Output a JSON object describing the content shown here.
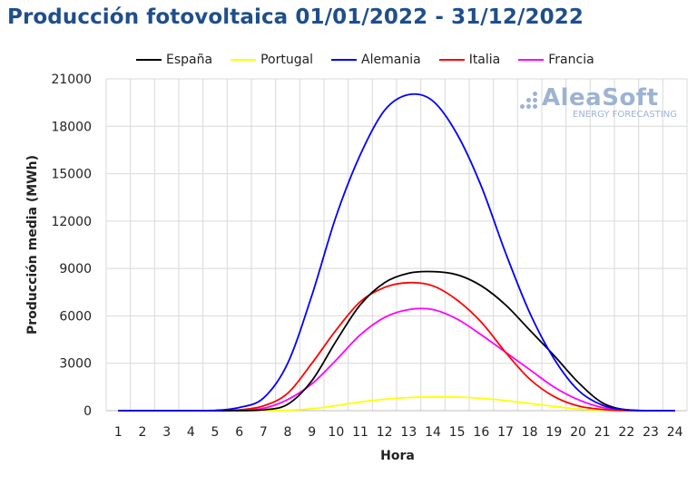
{
  "title": "Producción fotovoltaica 01/01/2022 - 31/12/2022",
  "logo": {
    "name": "AleaSoft",
    "tagline": "ENERGY FORECASTING"
  },
  "colors": {
    "title": "#1f4e8c",
    "logo": "#9db3d2",
    "grid": "#d9d9d9"
  },
  "chart_data": {
    "type": "line",
    "xlabel": "Hora",
    "ylabel": "Producción media (MWh)",
    "x": [
      1,
      2,
      3,
      4,
      5,
      6,
      7,
      8,
      9,
      10,
      11,
      12,
      13,
      14,
      15,
      16,
      17,
      18,
      19,
      20,
      21,
      22,
      23,
      24
    ],
    "ylim": [
      0,
      21000
    ],
    "yticks": [
      0,
      3000,
      6000,
      9000,
      12000,
      15000,
      18000,
      21000
    ],
    "grid": true,
    "legend_position": "top",
    "series": [
      {
        "name": "España",
        "color": "#000000",
        "values": [
          0,
          0,
          0,
          0,
          0,
          0,
          50,
          400,
          1900,
          4400,
          6700,
          8100,
          8700,
          8800,
          8600,
          7900,
          6700,
          5100,
          3500,
          1800,
          500,
          50,
          0,
          0
        ]
      },
      {
        "name": "Portugal",
        "color": "#ffff00",
        "values": [
          0,
          0,
          0,
          0,
          0,
          0,
          0,
          20,
          120,
          320,
          550,
          720,
          830,
          870,
          860,
          780,
          640,
          460,
          270,
          100,
          20,
          0,
          0,
          0
        ]
      },
      {
        "name": "Alemania",
        "color": "#0000ff",
        "values": [
          0,
          0,
          0,
          0,
          20,
          200,
          800,
          3000,
          7300,
          12300,
          16200,
          19000,
          20000,
          19600,
          17500,
          14200,
          10000,
          6200,
          3300,
          1300,
          350,
          60,
          0,
          0
        ]
      },
      {
        "name": "Italia",
        "color": "#ff0000",
        "values": [
          0,
          0,
          0,
          0,
          0,
          50,
          300,
          1100,
          3000,
          5100,
          6900,
          7800,
          8100,
          7900,
          7000,
          5600,
          3700,
          2000,
          900,
          300,
          80,
          0,
          0,
          0
        ]
      },
      {
        "name": "Francia",
        "color": "#ff00ff",
        "values": [
          0,
          0,
          0,
          0,
          0,
          20,
          150,
          700,
          1700,
          3200,
          4800,
          5900,
          6400,
          6400,
          5800,
          4800,
          3700,
          2600,
          1500,
          700,
          200,
          30,
          0,
          0
        ]
      }
    ]
  }
}
